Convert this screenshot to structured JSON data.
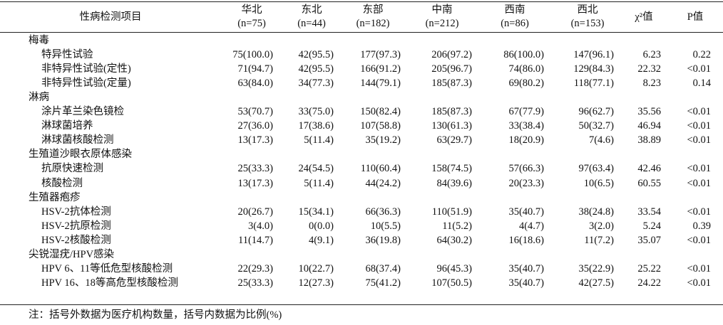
{
  "table": {
    "header": [
      "性病检测项目",
      {
        "name": "华北",
        "n": "(n=75)"
      },
      {
        "name": "东北",
        "n": "(n=44)"
      },
      {
        "name": "东部",
        "n": "(n=182)"
      },
      {
        "name": "中南",
        "n": "(n=212)"
      },
      {
        "name": "西南",
        "n": "(n=86)"
      },
      {
        "name": "西北",
        "n": "(n=153)"
      },
      "χ²值",
      "P值"
    ],
    "groups": [
      {
        "name": "梅毒",
        "rows": [
          [
            "特异性试验",
            "75(100.0)",
            "42(95.5)",
            "177(97.3)",
            "206(97.2)",
            "86(100.0)",
            "147(96.1)",
            "6.23",
            "0.22"
          ],
          [
            "非特异性试验(定性)",
            "71(94.7)",
            "42(95.5)",
            "166(91.2)",
            "205(96.7)",
            "74(86.0)",
            "129(84.3)",
            "22.32",
            "<0.01"
          ],
          [
            "非特异性试验(定量)",
            "63(84.0)",
            "34(77.3)",
            "144(79.1)",
            "185(87.3)",
            "69(80.2)",
            "118(77.1)",
            "8.23",
            "0.14"
          ]
        ]
      },
      {
        "name": "淋病",
        "rows": [
          [
            "涂片革兰染色镜检",
            "53(70.7)",
            "33(75.0)",
            "150(82.4)",
            "185(87.3)",
            "67(77.9)",
            "96(62.7)",
            "35.56",
            "<0.01"
          ],
          [
            "淋球菌培养",
            "27(36.0)",
            "17(38.6)",
            "107(58.8)",
            "130(61.3)",
            "33(38.4)",
            "50(32.7)",
            "46.94",
            "<0.01"
          ],
          [
            "淋球菌核酸检测",
            "13(17.3)",
            "5(11.4)",
            "35(19.2)",
            "63(29.7)",
            "18(20.9)",
            "7(4.6)",
            "38.89",
            "<0.01"
          ]
        ]
      },
      {
        "name": "生殖道沙眼衣原体感染",
        "rows": [
          [
            "抗原快速检测",
            "25(33.3)",
            "24(54.5)",
            "110(60.4)",
            "158(74.5)",
            "57(66.3)",
            "97(63.4)",
            "42.46",
            "<0.01"
          ],
          [
            "核酸检测",
            "13(17.3)",
            "5(11.4)",
            "44(24.2)",
            "84(39.6)",
            "20(23.3)",
            "10(6.5)",
            "60.55",
            "<0.01"
          ]
        ]
      },
      {
        "name": "生殖器疱疹",
        "rows": [
          [
            "HSV-2抗体检测",
            "20(26.7)",
            "15(34.1)",
            "66(36.3)",
            "110(51.9)",
            "35(40.7)",
            "38(24.8)",
            "33.54",
            "<0.01"
          ],
          [
            "HSV-2抗原检测",
            "3(4.0)",
            "0(0.0)",
            "10(5.5)",
            "11(5.2)",
            "4(4.7)",
            "3(2.0)",
            "5.24",
            "0.39"
          ],
          [
            "HSV-2核酸检测",
            "11(14.7)",
            "4(9.1)",
            "36(19.8)",
            "64(30.2)",
            "16(18.6)",
            "11(7.2)",
            "35.07",
            "<0.01"
          ]
        ]
      },
      {
        "name": "尖锐湿疣/HPV感染",
        "rows": [
          [
            "HPV 6、11等低危型核酸检测",
            "22(29.3)",
            "10(22.7)",
            "68(37.4)",
            "96(45.3)",
            "35(40.7)",
            "35(22.9)",
            "25.22",
            "<0.01"
          ],
          [
            "HPV 16、18等高危型核酸检测",
            "25(33.3)",
            "12(27.3)",
            "75(41.2)",
            "107(50.5)",
            "35(40.7)",
            "42(27.5)",
            "24.22",
            "<0.01"
          ]
        ]
      }
    ],
    "note": "注：括号外数据为医疗机构数量，括号内数据为比例(%)"
  }
}
